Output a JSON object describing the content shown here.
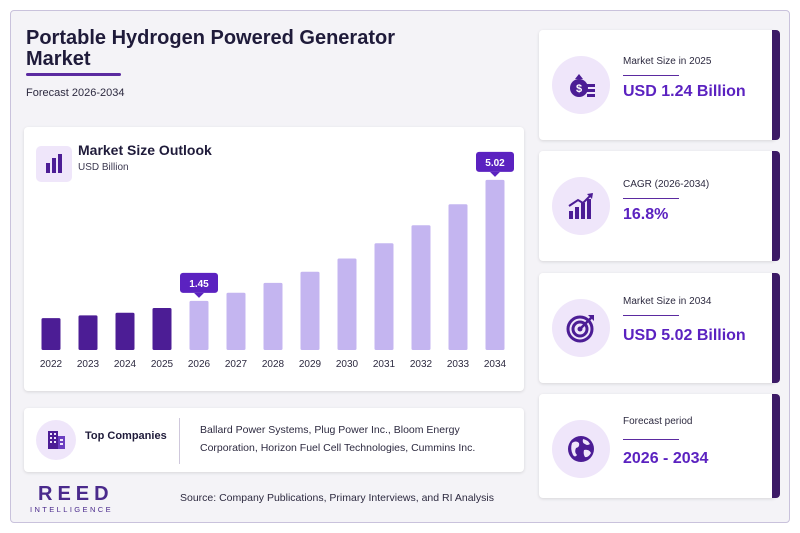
{
  "header": {
    "title": "Portable Hydrogen Powered Generator Market",
    "subtitle": "Forecast 2026-2034"
  },
  "chart_card": {
    "title": "Market Size Outlook",
    "unit": "USD Billion",
    "icon": "bar-chart-icon"
  },
  "chart_data": {
    "type": "bar",
    "title": "Market Size Outlook",
    "ylabel": "USD Billion",
    "categories": [
      "2022",
      "2023",
      "2024",
      "2025",
      "2026",
      "2027",
      "2028",
      "2029",
      "2030",
      "2031",
      "2032",
      "2033",
      "2034"
    ],
    "values": [
      0.94,
      1.02,
      1.1,
      1.24,
      1.45,
      1.69,
      1.98,
      2.31,
      2.7,
      3.15,
      3.68,
      4.3,
      5.02
    ],
    "segment_colors": {
      "historical": "#4c1d95",
      "forecast": "#c4b5f0"
    },
    "callouts": [
      {
        "category": "2026",
        "label": "1.45"
      },
      {
        "category": "2034",
        "label": "5.02"
      }
    ],
    "callout_color": "#5b22c0",
    "ylim": [
      0,
      5.4
    ],
    "grid": false,
    "legend": "none"
  },
  "companies": {
    "label": "Top Companies",
    "text": "Ballard Power Systems, Plug Power Inc., Bloom Energy Corporation, Horizon Fuel Cell Technologies, Cummins Inc.",
    "icon": "building-icon"
  },
  "stats": [
    {
      "label": "Market Size in 2025",
      "value": "USD 1.24 Billion",
      "icon": "money-bag-icon"
    },
    {
      "label": "CAGR (2026-2034)",
      "value": "16.8%",
      "icon": "growth-chart-icon"
    },
    {
      "label": "Market Size in 2034",
      "value": "USD 5.02 Billion",
      "icon": "target-icon"
    },
    {
      "label": "Forecast period",
      "value": "2026 - 2034",
      "icon": "globe-icon"
    }
  ],
  "brand": {
    "name": "REED",
    "tagline": "INTELLIGENCE"
  },
  "source": "Source: Company Publications, Primary Interviews, and RI Analysis",
  "colors": {
    "accent": "#5b22c0",
    "dark": "#3c1a66",
    "icon_bg": "#efe6fa"
  }
}
